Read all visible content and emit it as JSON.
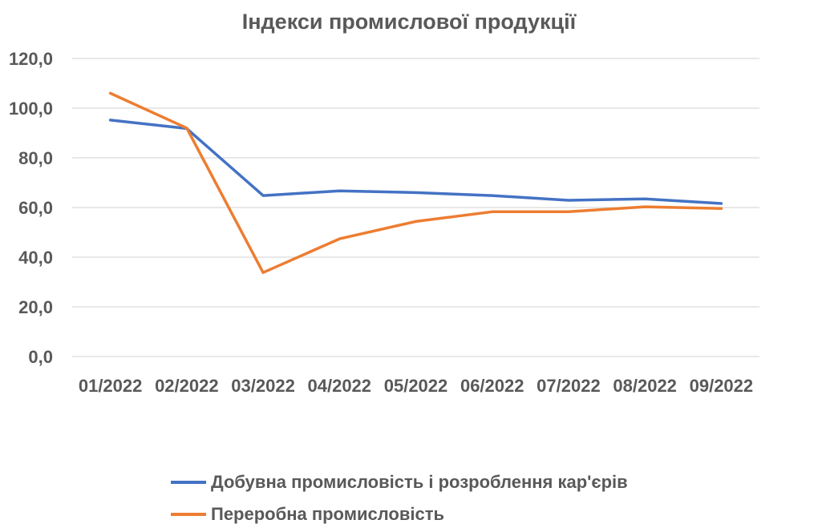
{
  "chart_data": {
    "type": "line",
    "title": "Індекси промислової продукції",
    "xlabel": "",
    "ylabel": "",
    "categories": [
      "01/2022",
      "02/2022",
      "03/2022",
      "04/2022",
      "05/2022",
      "06/2022",
      "07/2022",
      "08/2022",
      "09/2022"
    ],
    "ylim": [
      0,
      120
    ],
    "yticks": [
      "0,0",
      "20,0",
      "40,0",
      "60,0",
      "80,0",
      "100,0",
      "120,0"
    ],
    "grid": true,
    "legend_position": "bottom",
    "series": [
      {
        "name": "Добувна промисловість і розроблення кар'єрів",
        "color": "#4472C4",
        "values": [
          95.2,
          91.8,
          64.8,
          66.7,
          66.0,
          64.8,
          62.9,
          63.5,
          61.6
        ]
      },
      {
        "name": "Переробна промисловість",
        "color": "#ED7D31",
        "values": [
          106.0,
          92.0,
          33.8,
          47.4,
          54.4,
          58.3,
          58.3,
          60.3,
          59.6
        ]
      }
    ]
  }
}
